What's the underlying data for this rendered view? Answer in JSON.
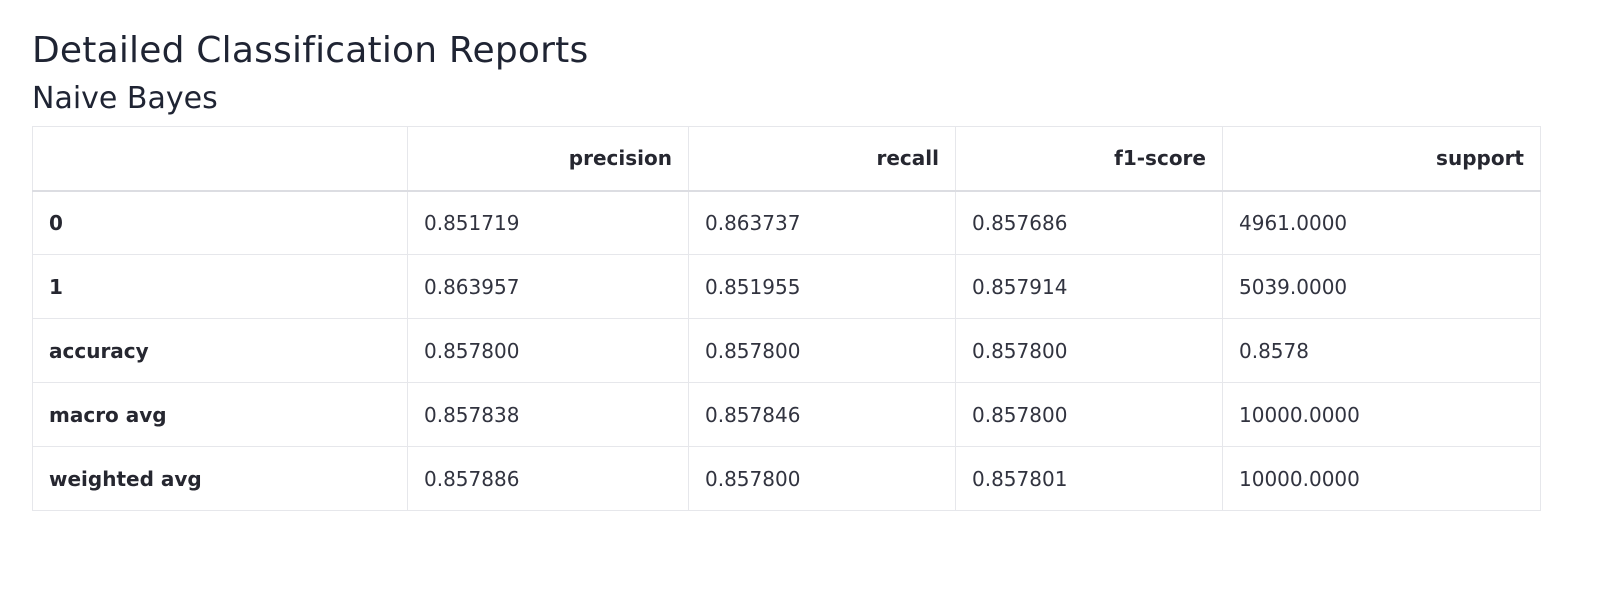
{
  "page": {
    "title": "Detailed Classification Reports"
  },
  "section": {
    "title": "Naive Bayes"
  },
  "table": {
    "columns": [
      "",
      "precision",
      "recall",
      "f1-score",
      "support"
    ],
    "rows": [
      {
        "label": "0",
        "cells": [
          "0.851719",
          "0.863737",
          "0.857686",
          "4961.0000"
        ]
      },
      {
        "label": "1",
        "cells": [
          "0.863957",
          "0.851955",
          "0.857914",
          "5039.0000"
        ]
      },
      {
        "label": "accuracy",
        "cells": [
          "0.857800",
          "0.857800",
          "0.857800",
          "0.8578"
        ]
      },
      {
        "label": "macro avg",
        "cells": [
          "0.857838",
          "0.857846",
          "0.857800",
          "10000.0000"
        ]
      },
      {
        "label": "weighted avg",
        "cells": [
          "0.857886",
          "0.857800",
          "0.857801",
          "10000.0000"
        ]
      }
    ]
  }
}
